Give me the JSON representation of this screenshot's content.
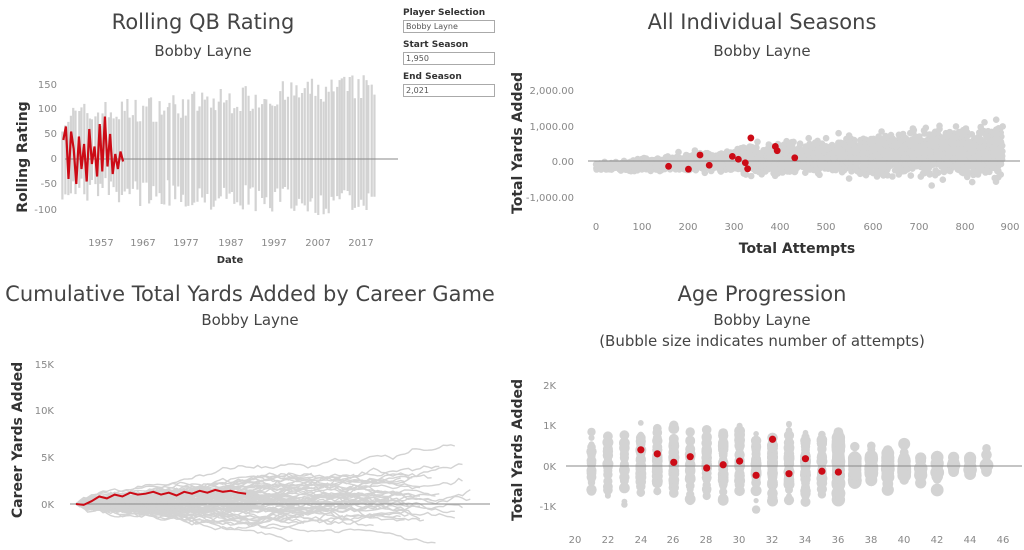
{
  "panels": {
    "rolling": {
      "title": "Rolling QB Rating",
      "subtitle": "Bobby Layne",
      "ylabel": "Rolling Rating",
      "xlabel": "Date",
      "yticks": [
        "150",
        "100",
        "50",
        "0",
        "-50",
        "-100"
      ],
      "xticks": [
        "1957",
        "1967",
        "1977",
        "1987",
        "1997",
        "2007",
        "2017"
      ]
    },
    "seasons": {
      "title": "All Individual Seasons",
      "subtitle": "Bobby Layne",
      "ylabel": "Total Yards Added",
      "xlabel": "Total Attempts",
      "yticks": [
        "2,000.00",
        "1,000.00",
        "0.00",
        "-1,000.00"
      ],
      "xticks": [
        "0",
        "100",
        "200",
        "300",
        "400",
        "500",
        "600",
        "700",
        "800",
        "900"
      ]
    },
    "cumulative": {
      "title": "Cumulative Total Yards Added by Career Game",
      "subtitle": "Bobby Layne",
      "ylabel": "Career Yards Added",
      "yticks": [
        "15K",
        "10K",
        "5K",
        "0K"
      ]
    },
    "age": {
      "title": "Age Progression",
      "subtitle": "Bobby Layne",
      "subtitle2": "(Bubble size indicates number of attempts)",
      "ylabel": "Total Yards Added",
      "yticks": [
        "2K",
        "1K",
        "0K",
        "-1K"
      ],
      "xticks": [
        "20",
        "22",
        "24",
        "26",
        "28",
        "30",
        "32",
        "34",
        "36",
        "38",
        "40",
        "42",
        "44",
        "46"
      ]
    }
  },
  "controls": {
    "player_label": "Player Selection",
    "player_value": "Bobby Layne",
    "start_label": "Start Season",
    "start_value": "1,950",
    "end_label": "End Season",
    "end_value": "2,021"
  },
  "colors": {
    "highlight": "#cc0b16",
    "background_marks": "#d3d3d3",
    "zero_line": "#888888"
  },
  "chart_data": [
    {
      "type": "line",
      "title": "Rolling QB Rating",
      "ylabel": "Rolling Rating",
      "xlabel": "Date",
      "ylim": [
        -130,
        170
      ],
      "xlim": [
        1947,
        2024
      ],
      "highlight_series": {
        "name": "Bobby Layne",
        "x": [
          1948.3,
          1948.9,
          1949.5,
          1950.1,
          1950.7,
          1951.3,
          1951.9,
          1952.5,
          1953.1,
          1953.7,
          1954.3,
          1954.9,
          1955.5,
          1956.1,
          1956.7,
          1957.3,
          1957.9,
          1958.5,
          1959.1,
          1959.7,
          1960.3,
          1960.9,
          1961.5,
          1962.1
        ],
        "y": [
          38,
          65,
          -40,
          55,
          20,
          -50,
          45,
          -20,
          30,
          -45,
          60,
          -10,
          25,
          -35,
          70,
          -25,
          85,
          -15,
          50,
          -30,
          10,
          -20,
          15,
          -5
        ]
      }
    },
    {
      "type": "scatter",
      "title": "All Individual Seasons",
      "xlabel": "Total Attempts",
      "ylabel": "Total Yards Added",
      "xlim": [
        0,
        900
      ],
      "ylim": [
        -1500,
        2500
      ],
      "highlight_series": {
        "name": "Bobby Layne",
        "x": [
          157,
          200,
          225,
          245,
          295,
          308,
          323,
          328,
          335,
          388,
          392,
          430
        ],
        "y": [
          -150,
          -230,
          170,
          -120,
          130,
          50,
          -50,
          -220,
          650,
          410,
          290,
          90
        ]
      }
    },
    {
      "type": "line",
      "title": "Cumulative Total Yards Added by Career Game",
      "ylabel": "Career Yards Added",
      "ylim": [
        -3500,
        17000
      ],
      "xlim": [
        0,
        520
      ],
      "highlight_series": {
        "name": "Bobby Layne",
        "x": [
          0,
          10,
          20,
          30,
          40,
          50,
          60,
          70,
          80,
          90,
          100,
          110,
          120,
          130,
          140,
          150,
          160,
          170,
          180,
          190,
          200,
          210,
          220
        ],
        "y": [
          0,
          -100,
          300,
          800,
          600,
          1000,
          800,
          1200,
          1000,
          1100,
          1300,
          1000,
          1200,
          900,
          1300,
          1100,
          1400,
          1200,
          1500,
          1300,
          1400,
          1200,
          1100
        ]
      }
    },
    {
      "type": "scatter",
      "title": "Age Progression",
      "ylabel": "Total Yards Added",
      "xlim": [
        19.5,
        46.5
      ],
      "ylim": [
        -1700,
        2600
      ],
      "highlight_series": {
        "name": "Bobby Layne",
        "x": [
          24,
          25,
          26,
          27,
          28,
          29,
          30,
          31,
          32,
          33,
          34,
          35,
          36
        ],
        "y": [
          400,
          300,
          90,
          230,
          -50,
          30,
          120,
          -230,
          660,
          -190,
          180,
          -130,
          -150
        ]
      }
    }
  ]
}
